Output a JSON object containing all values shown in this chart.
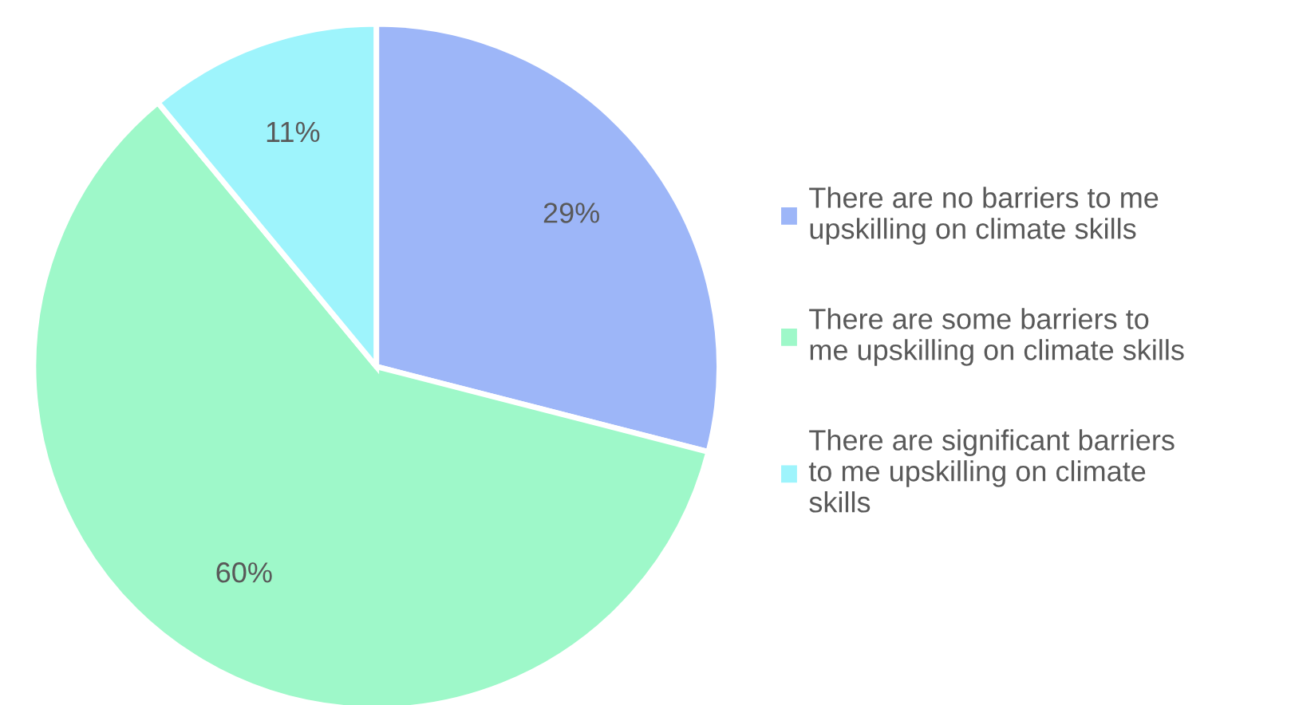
{
  "chart_data": {
    "type": "pie",
    "categories": [
      "There are no barriers to me\nupskilling on climate skills",
      "There are some barriers to\nme upskilling on climate skills",
      "There are significant barriers\nto me upskilling on climate\nskills"
    ],
    "values": [
      29,
      60,
      11
    ],
    "colors": [
      "#9db6f8",
      "#9ef8c9",
      "#9ef4fc"
    ],
    "value_labels": [
      "29%",
      "60%",
      "11%"
    ],
    "legend": "right"
  }
}
